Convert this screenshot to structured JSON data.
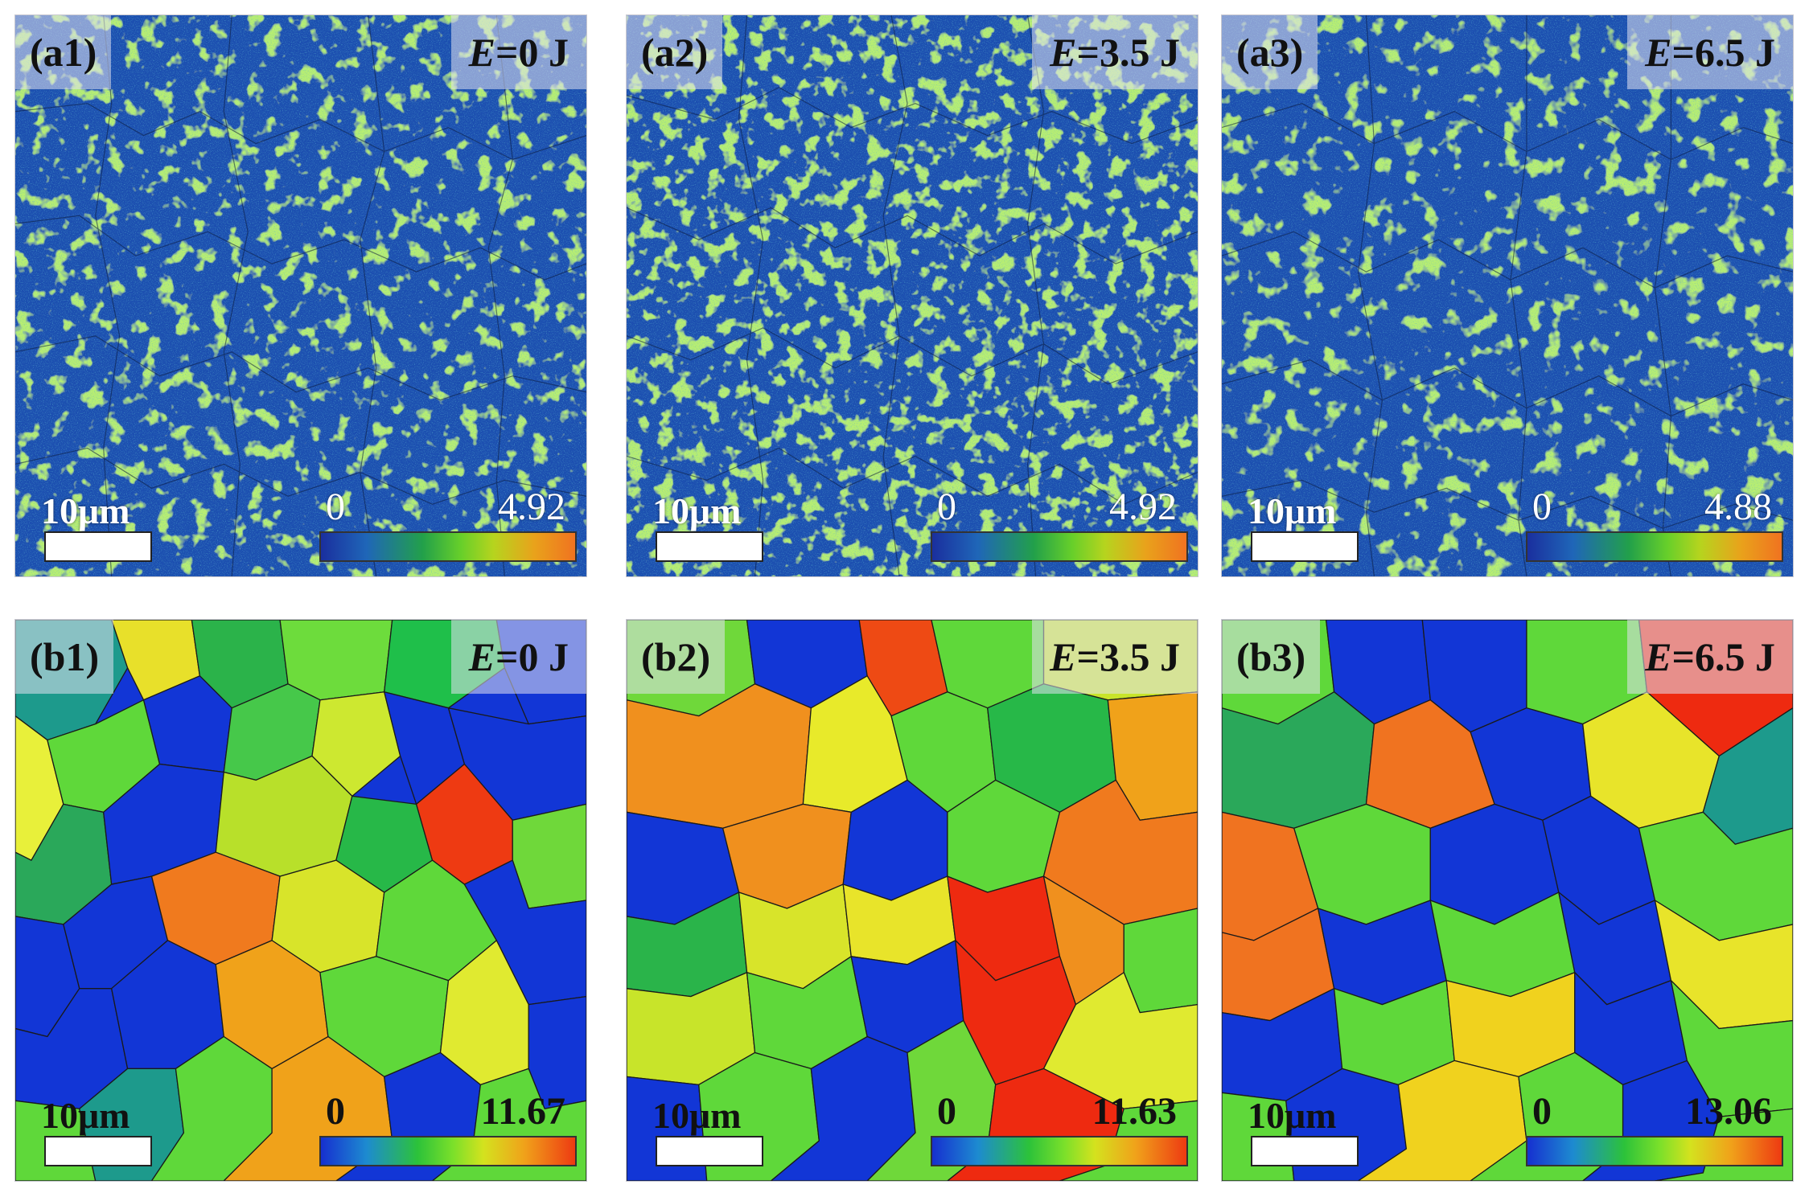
{
  "panels": [
    {
      "id": "a1",
      "label": "(a1)",
      "energy_symbol": "E",
      "energy_value": "=0 J",
      "scale": "10μm",
      "min": "0",
      "max": "4.92"
    },
    {
      "id": "a2",
      "label": "(a2)",
      "energy_symbol": "E",
      "energy_value": "=3.5 J",
      "scale": "10μm",
      "min": "0",
      "max": "4.92"
    },
    {
      "id": "a3",
      "label": "(a3)",
      "energy_symbol": "E",
      "energy_value": "=6.5 J",
      "scale": "10μm",
      "min": "0",
      "max": "4.88"
    },
    {
      "id": "b1",
      "label": "(b1)",
      "energy_symbol": "E",
      "energy_value": "=0 J",
      "scale": "10μm",
      "min": "0",
      "max": "11.67"
    },
    {
      "id": "b2",
      "label": "(b2)",
      "energy_symbol": "E",
      "energy_value": "=3.5 J",
      "scale": "10μm",
      "min": "0",
      "max": "11.63"
    },
    {
      "id": "b3",
      "label": "(b3)",
      "energy_symbol": "E",
      "energy_value": "=6.5 J",
      "scale": "10μm",
      "min": "0",
      "max": "13.06"
    }
  ],
  "colors": {
    "kam_background": "#1f4fb0",
    "kam_high": "#7ad72a",
    "grain_blue": "#1236d6",
    "grain_green": "#5fd83a",
    "grain_yellow": "#d7e82a",
    "grain_orange": "#f08a1e",
    "grain_red": "#ee2a10"
  }
}
